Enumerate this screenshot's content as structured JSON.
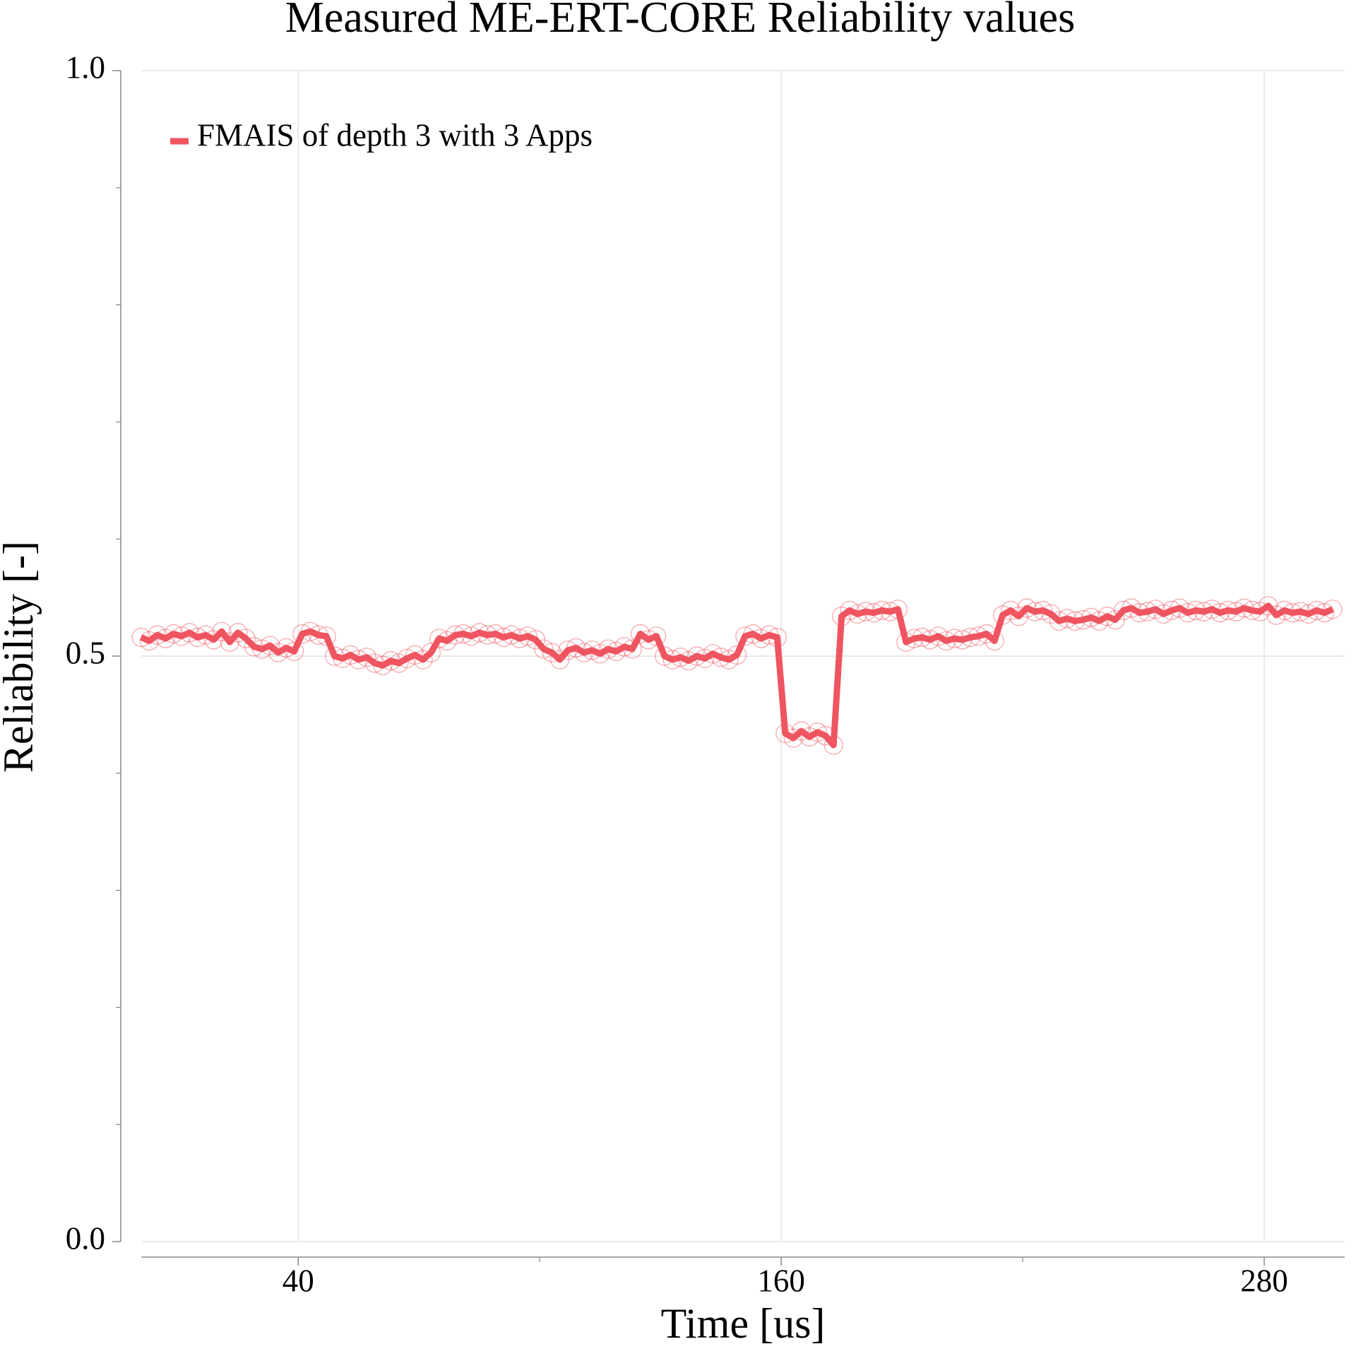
{
  "chart_data": {
    "type": "line",
    "title": "Measured ME-ERT-CORE Reliability values",
    "x_label": "Time [us]",
    "y_label": "Reliability [-]",
    "xlim": [
      1,
      300
    ],
    "ylim": [
      0,
      1
    ],
    "xticks": [
      40,
      160,
      280
    ],
    "xminor_ticks": [
      100,
      220
    ],
    "yticks": [
      {
        "value": 0,
        "label": "0.0"
      },
      {
        "value": 0.5,
        "label": "0.5"
      },
      {
        "value": 1,
        "label": "1.0"
      }
    ],
    "yminor_ticks": [
      0.1,
      0.2,
      0.3,
      0.4,
      0.6,
      0.7,
      0.8,
      0.9
    ],
    "grid": true,
    "legend": "top-left",
    "markers": true,
    "x": [
      1,
      3,
      5,
      7,
      9,
      11,
      13,
      15,
      17,
      19,
      21,
      23,
      25,
      27,
      29,
      31,
      33,
      35,
      37,
      39,
      41,
      43,
      45,
      47,
      49,
      51,
      53,
      55,
      57,
      59,
      61,
      63,
      65,
      67,
      69,
      71,
      73,
      75,
      77,
      79,
      81,
      83,
      85,
      87,
      89,
      91,
      93,
      95,
      97,
      99,
      101,
      103,
      105,
      107,
      109,
      111,
      113,
      115,
      117,
      119,
      121,
      123,
      125,
      127,
      129,
      131,
      133,
      135,
      137,
      139,
      141,
      143,
      145,
      147,
      149,
      151,
      153,
      155,
      157,
      159,
      161,
      163,
      165,
      167,
      169,
      171,
      173,
      175,
      177,
      179,
      181,
      183,
      185,
      187,
      189,
      191,
      193,
      195,
      197,
      199,
      201,
      203,
      205,
      207,
      209,
      211,
      213,
      215,
      217,
      219,
      221,
      223,
      225,
      227,
      229,
      231,
      233,
      235,
      237,
      239,
      241,
      243,
      245,
      247,
      249,
      251,
      253,
      255,
      257,
      259,
      261,
      263,
      265,
      267,
      269,
      271,
      273,
      275,
      277,
      279,
      281,
      283,
      285,
      287,
      289,
      291,
      293,
      295,
      297
    ],
    "series": [
      {
        "name": "FMAIS of depth 3 with 3 Apps",
        "color": "#ee5560",
        "values": [
          0.516,
          0.513,
          0.518,
          0.515,
          0.519,
          0.517,
          0.52,
          0.516,
          0.518,
          0.514,
          0.521,
          0.512,
          0.52,
          0.515,
          0.508,
          0.506,
          0.509,
          0.503,
          0.507,
          0.504,
          0.519,
          0.521,
          0.518,
          0.517,
          0.5,
          0.498,
          0.501,
          0.497,
          0.499,
          0.494,
          0.492,
          0.496,
          0.494,
          0.498,
          0.501,
          0.497,
          0.503,
          0.515,
          0.513,
          0.518,
          0.519,
          0.517,
          0.52,
          0.518,
          0.519,
          0.516,
          0.518,
          0.515,
          0.517,
          0.514,
          0.506,
          0.503,
          0.497,
          0.505,
          0.507,
          0.503,
          0.505,
          0.502,
          0.506,
          0.504,
          0.508,
          0.506,
          0.519,
          0.514,
          0.517,
          0.5,
          0.497,
          0.499,
          0.496,
          0.5,
          0.498,
          0.502,
          0.499,
          0.497,
          0.501,
          0.517,
          0.519,
          0.515,
          0.518,
          0.516,
          0.434,
          0.43,
          0.436,
          0.431,
          0.435,
          0.432,
          0.424,
          0.534,
          0.539,
          0.536,
          0.538,
          0.537,
          0.539,
          0.538,
          0.54,
          0.512,
          0.515,
          0.516,
          0.514,
          0.517,
          0.513,
          0.515,
          0.514,
          0.516,
          0.517,
          0.519,
          0.513,
          0.535,
          0.539,
          0.534,
          0.541,
          0.538,
          0.539,
          0.536,
          0.53,
          0.532,
          0.53,
          0.531,
          0.533,
          0.53,
          0.534,
          0.531,
          0.539,
          0.541,
          0.537,
          0.538,
          0.54,
          0.536,
          0.539,
          0.541,
          0.537,
          0.539,
          0.538,
          0.54,
          0.537,
          0.539,
          0.538,
          0.541,
          0.539,
          0.538,
          0.543,
          0.535,
          0.539,
          0.537,
          0.538,
          0.536,
          0.539,
          0.537,
          0.54
        ]
      }
    ]
  }
}
